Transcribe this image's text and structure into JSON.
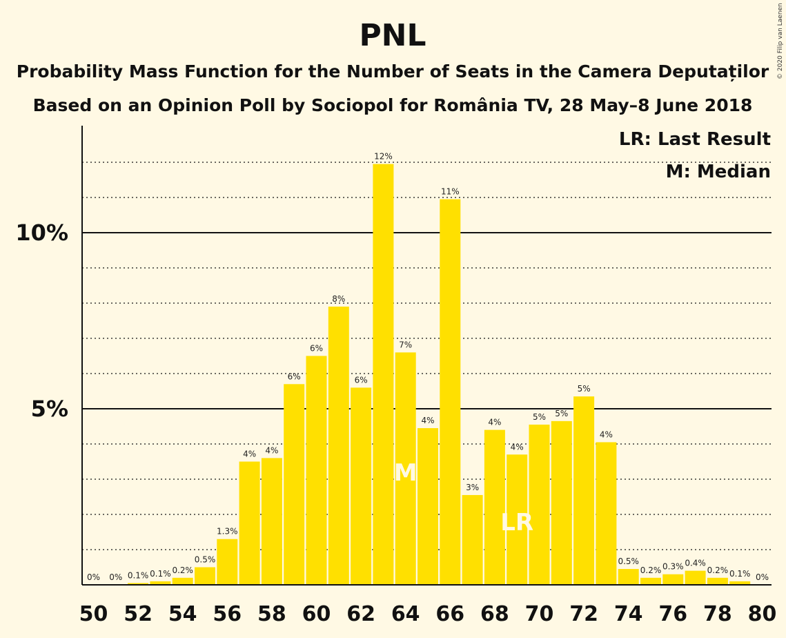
{
  "title": "PNL",
  "subtitle1": "Probability Mass Function for the Number of Seats in the Camera Deputaților",
  "subtitle2": "Based on an Opinion Poll by Sociopol for România TV, 28 May–8 June 2018",
  "legend": {
    "lr": "LR: Last Result",
    "m": "M: Median"
  },
  "copyright": "© 2020 Filip van Laenen",
  "colors": {
    "bar": "#FFE000",
    "background": "#FFF9E4",
    "axis": "#111111"
  },
  "chart_data": {
    "type": "bar",
    "x": [
      50,
      51,
      52,
      53,
      54,
      55,
      56,
      57,
      58,
      59,
      60,
      61,
      62,
      63,
      64,
      65,
      66,
      67,
      68,
      69,
      70,
      71,
      72,
      73,
      74,
      75,
      76,
      77,
      78,
      79,
      80
    ],
    "values": [
      0,
      0,
      0.05,
      0.1,
      0.2,
      0.5,
      1.3,
      3.5,
      3.6,
      5.7,
      6.5,
      7.9,
      5.6,
      11.95,
      6.6,
      4.45,
      10.95,
      2.55,
      4.4,
      3.7,
      4.55,
      4.65,
      5.35,
      4.05,
      0.45,
      0.2,
      0.3,
      0.4,
      0.2,
      0.1,
      0
    ],
    "labels": [
      "0%",
      "0%",
      "0.1%",
      "0.1%",
      "0.2%",
      "0.5%",
      "1.3%",
      "4%",
      "4%",
      "6%",
      "6%",
      "8%",
      "6%",
      "12%",
      "7%",
      "4%",
      "11%",
      "3%",
      "4%",
      "4%",
      "5%",
      "5%",
      "5%",
      "4%",
      "0.5%",
      "0.2%",
      "0.3%",
      "0.4%",
      "0.2%",
      "0.1%",
      "0%"
    ],
    "xticks": [
      "50",
      "52",
      "54",
      "56",
      "58",
      "60",
      "62",
      "64",
      "66",
      "68",
      "70",
      "72",
      "74",
      "76",
      "78",
      "80"
    ],
    "yticks": [
      "5%",
      "10%"
    ],
    "ylim": [
      0,
      13
    ],
    "median_seat": 64,
    "median_label": "M",
    "last_result_seat": 69,
    "last_result_label": "LR"
  }
}
